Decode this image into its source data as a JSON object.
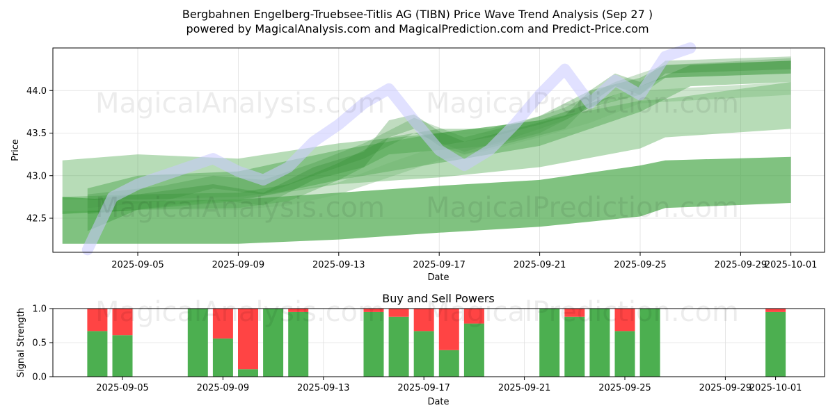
{
  "title": {
    "line1": "Bergbahnen Engelberg-Truebsee-Titlis AG (TIBN) Price Wave Trend Analysis (Sep 27 )",
    "line2": "powered by MagicalAnalysis.com and MagicalPrediction.com and Predict-Price.com"
  },
  "watermarks": [
    "MagicalAnalysis.com",
    "MagicalPrediction.com"
  ],
  "chart_data": [
    {
      "type": "area",
      "name": "Price Wave Trend",
      "xlabel": "Date",
      "ylabel": "Price",
      "xlim": [
        "2025-09-02",
        "2025-10-02"
      ],
      "ylim": [
        42.1,
        44.5
      ],
      "x_ticks": [
        "2025-09-05",
        "2025-09-09",
        "2025-09-13",
        "2025-09-17",
        "2025-09-21",
        "2025-09-25",
        "2025-09-29",
        "2025-10-01"
      ],
      "y_ticks": [
        42.5,
        43.0,
        43.5,
        44.0
      ],
      "grid": true,
      "price_line": {
        "color": "#c8c8ff",
        "points": [
          [
            "2025-09-03",
            42.13
          ],
          [
            "2025-09-04",
            42.75
          ],
          [
            "2025-09-05",
            42.9
          ],
          [
            "2025-09-07",
            43.1
          ],
          [
            "2025-09-08",
            43.2
          ],
          [
            "2025-09-09",
            43.05
          ],
          [
            "2025-09-10",
            42.95
          ],
          [
            "2025-09-11",
            43.1
          ],
          [
            "2025-09-12",
            43.4
          ],
          [
            "2025-09-13",
            43.6
          ],
          [
            "2025-09-14",
            43.85
          ],
          [
            "2025-09-15",
            44.02
          ],
          [
            "2025-09-16",
            43.65
          ],
          [
            "2025-09-17",
            43.3
          ],
          [
            "2025-09-18",
            43.12
          ],
          [
            "2025-09-19",
            43.3
          ],
          [
            "2025-09-20",
            43.6
          ],
          [
            "2025-09-21",
            43.95
          ],
          [
            "2025-09-22",
            44.25
          ],
          [
            "2025-09-23",
            43.85
          ],
          [
            "2025-09-24",
            44.12
          ],
          [
            "2025-09-25",
            43.95
          ],
          [
            "2025-09-26",
            44.4
          ],
          [
            "2025-09-27",
            44.5
          ]
        ]
      },
      "wave_series": [
        {
          "name": "wave-long-lower",
          "color": "#4aa84a",
          "opacity": 0.7,
          "points": [
            [
              "2025-09-02",
              42.2,
              42.75
            ],
            [
              "2025-09-05",
              42.2,
              42.7
            ],
            [
              "2025-09-09",
              42.2,
              42.72
            ],
            [
              "2025-09-13",
              42.25,
              42.8
            ],
            [
              "2025-09-17",
              42.33,
              42.88
            ],
            [
              "2025-09-21",
              42.4,
              42.95
            ],
            [
              "2025-09-25",
              42.52,
              43.12
            ],
            [
              "2025-09-26",
              42.62,
              43.18
            ],
            [
              "2025-10-01",
              42.68,
              43.22
            ]
          ]
        },
        {
          "name": "wave-long-upper",
          "color": "#4aa84a",
          "opacity": 0.4,
          "points": [
            [
              "2025-09-02",
              42.55,
              43.18
            ],
            [
              "2025-09-05",
              42.6,
              43.25
            ],
            [
              "2025-09-09",
              42.72,
              43.2
            ],
            [
              "2025-09-13",
              42.9,
              43.38
            ],
            [
              "2025-09-17",
              42.98,
              43.5
            ],
            [
              "2025-09-21",
              43.1,
              43.65
            ],
            [
              "2025-09-25",
              43.32,
              43.88
            ],
            [
              "2025-09-26",
              43.45,
              43.9
            ],
            [
              "2025-10-01",
              43.55,
              44.1
            ]
          ]
        },
        {
          "name": "wave-mid-1",
          "color": "#3a9a3a",
          "opacity": 0.4,
          "points": [
            [
              "2025-09-03",
              42.35,
              42.85
            ],
            [
              "2025-09-05",
              42.6,
              43.0
            ],
            [
              "2025-09-09",
              42.7,
              43.05
            ],
            [
              "2025-09-13",
              42.95,
              43.3
            ],
            [
              "2025-09-17",
              43.15,
              43.5
            ],
            [
              "2025-09-21",
              43.35,
              43.65
            ],
            [
              "2025-09-25",
              43.75,
              44.05
            ],
            [
              "2025-09-27",
              44.05,
              44.3
            ],
            [
              "2025-10-01",
              44.1,
              44.35
            ]
          ]
        },
        {
          "name": "wave-mid-2",
          "color": "#3a9a3a",
          "opacity": 0.35,
          "points": [
            [
              "2025-09-02",
              42.55,
              42.75
            ],
            [
              "2025-09-05",
              42.6,
              42.78
            ],
            [
              "2025-09-09",
              42.62,
              42.8
            ],
            [
              "2025-09-11",
              42.7,
              42.9
            ],
            [
              "2025-09-13",
              42.95,
              43.15
            ],
            [
              "2025-09-15",
              43.25,
              43.45
            ],
            [
              "2025-09-17",
              43.3,
              43.55
            ],
            [
              "2025-09-19",
              43.35,
              43.55
            ],
            [
              "2025-09-21",
              43.5,
              43.7
            ],
            [
              "2025-09-23",
              43.8,
              44.0
            ],
            [
              "2025-09-25",
              43.95,
              44.15
            ],
            [
              "2025-09-26",
              44.15,
              44.3
            ],
            [
              "2025-10-01",
              44.2,
              44.35
            ]
          ]
        },
        {
          "name": "wave-short-1",
          "color": "#2e8b2e",
          "opacity": 0.3,
          "points": [
            [
              "2025-09-03",
              42.55,
              42.72
            ],
            [
              "2025-09-05",
              42.6,
              42.78
            ],
            [
              "2025-09-08",
              42.72,
              42.9
            ],
            [
              "2025-09-10",
              42.65,
              42.8
            ],
            [
              "2025-09-12",
              42.95,
              43.1
            ],
            [
              "2025-09-14",
              43.1,
              43.28
            ],
            [
              "2025-09-15",
              43.45,
              43.65
            ],
            [
              "2025-09-16",
              43.55,
              43.72
            ],
            [
              "2025-09-17",
              43.35,
              43.52
            ],
            [
              "2025-09-18",
              43.25,
              43.4
            ],
            [
              "2025-09-20",
              43.4,
              43.55
            ],
            [
              "2025-09-22",
              43.55,
              43.7
            ],
            [
              "2025-09-23",
              43.85,
              44.0
            ],
            [
              "2025-09-24",
              44.05,
              44.2
            ],
            [
              "2025-09-25",
              43.95,
              44.1
            ],
            [
              "2025-09-26",
              44.2,
              44.35
            ],
            [
              "2025-10-01",
              44.25,
              44.4
            ]
          ]
        },
        {
          "name": "wave-short-2",
          "color": "#2e8b2e",
          "opacity": 0.25,
          "points": [
            [
              "2025-09-03",
              42.62,
              42.78
            ],
            [
              "2025-09-06",
              42.7,
              42.88
            ],
            [
              "2025-09-08",
              42.85,
              43.0
            ],
            [
              "2025-09-10",
              42.78,
              42.95
            ],
            [
              "2025-09-12",
              43.0,
              43.15
            ],
            [
              "2025-09-14",
              43.2,
              43.38
            ],
            [
              "2025-09-16",
              43.5,
              43.68
            ],
            [
              "2025-09-18",
              43.28,
              43.45
            ],
            [
              "2025-09-20",
              43.45,
              43.6
            ],
            [
              "2025-09-22",
              43.65,
              43.8
            ],
            [
              "2025-09-24",
              43.95,
              44.1
            ],
            [
              "2025-09-26",
              44.15,
              44.3
            ],
            [
              "2025-10-01",
              44.2,
              44.38
            ]
          ]
        },
        {
          "name": "wave-flat-2",
          "color": "#6fb56f",
          "opacity": 0.35,
          "points": [
            [
              "2025-09-02",
              42.58,
              42.72
            ],
            [
              "2025-09-05",
              42.6,
              42.72
            ],
            [
              "2025-09-09",
              42.6,
              42.75
            ],
            [
              "2025-09-11",
              42.65,
              42.82
            ],
            [
              "2025-09-13",
              42.78,
              42.92
            ],
            [
              "2025-09-15",
              42.98,
              43.15
            ],
            [
              "2025-09-17",
              43.18,
              43.35
            ],
            [
              "2025-09-19",
              43.3,
              43.45
            ],
            [
              "2025-09-21",
              43.45,
              43.6
            ],
            [
              "2025-09-23",
              43.62,
              43.78
            ],
            [
              "2025-09-25",
              43.85,
              44.0
            ],
            [
              "2025-10-01",
              43.95,
              44.1
            ]
          ]
        }
      ]
    },
    {
      "type": "bar",
      "name": "Buy and Sell Powers",
      "title": "Buy and Sell Powers",
      "xlabel": "Date",
      "ylabel": "Signal Strength",
      "ylim": [
        0.0,
        1.0
      ],
      "y_ticks": [
        "0.0",
        "0.5",
        "1.0"
      ],
      "x_ticks": [
        "2025-09-05",
        "2025-09-09",
        "2025-09-13",
        "2025-09-17",
        "2025-09-21",
        "2025-09-25",
        "2025-09-29",
        "2025-10-01"
      ],
      "buy_color": "#4caf50",
      "sell_color": "#ff4444",
      "series": [
        {
          "name": "Buy",
          "values": [
            0.67,
            0.61,
            1.0,
            0.56,
            0.11,
            1.0,
            0.95,
            0.95,
            0.88,
            0.67,
            0.39,
            0.78,
            1.0,
            0.88,
            1.0,
            0.67,
            1.0,
            0.95
          ]
        },
        {
          "name": "Sell",
          "values": [
            0.33,
            0.39,
            0.0,
            0.44,
            0.89,
            0.0,
            0.05,
            0.05,
            0.12,
            0.33,
            0.61,
            0.22,
            0.0,
            0.12,
            0.0,
            0.33,
            0.0,
            0.05
          ]
        }
      ],
      "categories": [
        "2025-09-04",
        "2025-09-05",
        "2025-09-08",
        "2025-09-09",
        "2025-09-10",
        "2025-09-11",
        "2025-09-12",
        "2025-09-15",
        "2025-09-16",
        "2025-09-17",
        "2025-09-18",
        "2025-09-19",
        "2025-09-22",
        "2025-09-23",
        "2025-09-24",
        "2025-09-25",
        "2025-09-26",
        "2025-10-01"
      ]
    }
  ]
}
